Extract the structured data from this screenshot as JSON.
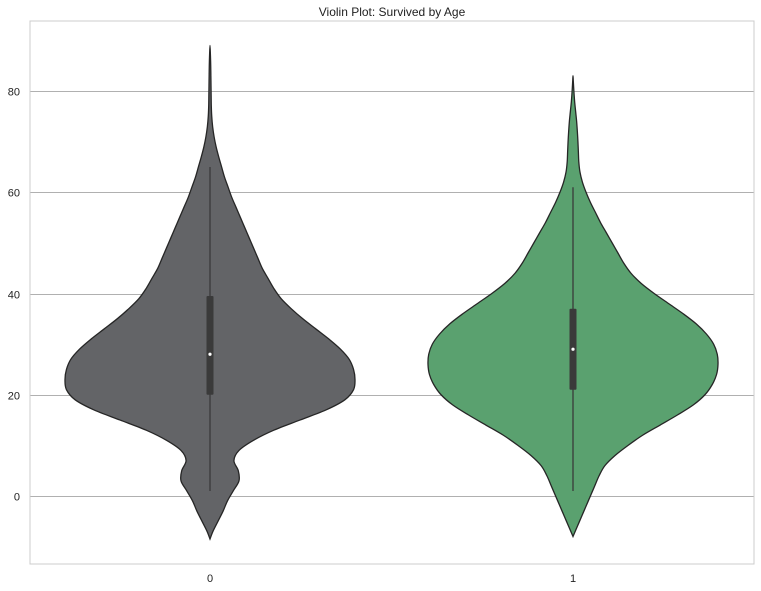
{
  "chart_data": {
    "type": "violin",
    "title": "Violin Plot: Survived by Age",
    "xlabel": "",
    "ylabel": "",
    "categories": [
      "0",
      "1"
    ],
    "ylim": [
      -13,
      94
    ],
    "yticks": [
      0,
      20,
      40,
      60,
      80
    ],
    "ytick_labels": [
      "0",
      "20",
      "40",
      "60",
      "80"
    ],
    "grid": "horizontal",
    "colors": {
      "0": "#636467",
      "1": "#5aa16f"
    },
    "violins": [
      {
        "category": "0",
        "color": "#636467",
        "box": {
          "whisker_low": 1,
          "q1": 20,
          "median": 28,
          "q3": 39.5,
          "whisker_high": 65
        },
        "density": [
          [
            -8.5,
            0.0
          ],
          [
            -7,
            0.02
          ],
          [
            -5,
            0.055
          ],
          [
            -3,
            0.09
          ],
          [
            -1,
            0.12
          ],
          [
            1,
            0.16
          ],
          [
            3,
            0.2
          ],
          [
            5,
            0.195
          ],
          [
            7,
            0.165
          ],
          [
            9,
            0.2
          ],
          [
            11,
            0.3
          ],
          [
            13,
            0.44
          ],
          [
            15,
            0.62
          ],
          [
            17,
            0.8
          ],
          [
            19,
            0.93
          ],
          [
            21,
            0.99
          ],
          [
            23,
            1.0
          ],
          [
            25,
            0.99
          ],
          [
            27,
            0.96
          ],
          [
            29,
            0.9
          ],
          [
            31,
            0.82
          ],
          [
            33,
            0.73
          ],
          [
            35,
            0.64
          ],
          [
            37,
            0.56
          ],
          [
            39,
            0.49
          ],
          [
            41,
            0.44
          ],
          [
            43,
            0.4
          ],
          [
            45,
            0.36
          ],
          [
            47,
            0.33
          ],
          [
            49,
            0.3
          ],
          [
            51,
            0.27
          ],
          [
            53,
            0.24
          ],
          [
            55,
            0.21
          ],
          [
            57,
            0.18
          ],
          [
            59,
            0.15
          ],
          [
            61,
            0.125
          ],
          [
            63,
            0.1
          ],
          [
            65,
            0.08
          ],
          [
            67,
            0.06
          ],
          [
            69,
            0.042
          ],
          [
            71,
            0.028
          ],
          [
            73,
            0.018
          ],
          [
            75,
            0.012
          ],
          [
            77,
            0.009
          ],
          [
            79,
            0.008
          ],
          [
            81,
            0.007
          ],
          [
            83,
            0.006
          ],
          [
            85,
            0.005
          ],
          [
            87,
            0.003
          ],
          [
            89,
            0.0
          ]
        ]
      },
      {
        "category": "1",
        "color": "#5aa16f",
        "box": {
          "whisker_low": 1,
          "q1": 21,
          "median": 29,
          "q3": 37,
          "whisker_high": 61
        },
        "density": [
          [
            -8,
            0.0
          ],
          [
            -6,
            0.03
          ],
          [
            -4,
            0.06
          ],
          [
            -2,
            0.09
          ],
          [
            0,
            0.12
          ],
          [
            2,
            0.15
          ],
          [
            4,
            0.18
          ],
          [
            6,
            0.22
          ],
          [
            8,
            0.29
          ],
          [
            10,
            0.38
          ],
          [
            12,
            0.48
          ],
          [
            14,
            0.6
          ],
          [
            16,
            0.72
          ],
          [
            18,
            0.83
          ],
          [
            20,
            0.91
          ],
          [
            22,
            0.96
          ],
          [
            24,
            0.99
          ],
          [
            26,
            1.0
          ],
          [
            28,
            0.995
          ],
          [
            30,
            0.97
          ],
          [
            32,
            0.92
          ],
          [
            34,
            0.85
          ],
          [
            36,
            0.76
          ],
          [
            38,
            0.66
          ],
          [
            40,
            0.56
          ],
          [
            42,
            0.47
          ],
          [
            44,
            0.4
          ],
          [
            46,
            0.35
          ],
          [
            48,
            0.31
          ],
          [
            50,
            0.27
          ],
          [
            52,
            0.23
          ],
          [
            54,
            0.19
          ],
          [
            56,
            0.155
          ],
          [
            58,
            0.12
          ],
          [
            60,
            0.09
          ],
          [
            62,
            0.065
          ],
          [
            64,
            0.048
          ],
          [
            66,
            0.04
          ],
          [
            68,
            0.037
          ],
          [
            70,
            0.034
          ],
          [
            72,
            0.03
          ],
          [
            74,
            0.025
          ],
          [
            76,
            0.018
          ],
          [
            78,
            0.011
          ],
          [
            80,
            0.006
          ],
          [
            82,
            0.002
          ],
          [
            83,
            0.0
          ]
        ]
      }
    ]
  }
}
